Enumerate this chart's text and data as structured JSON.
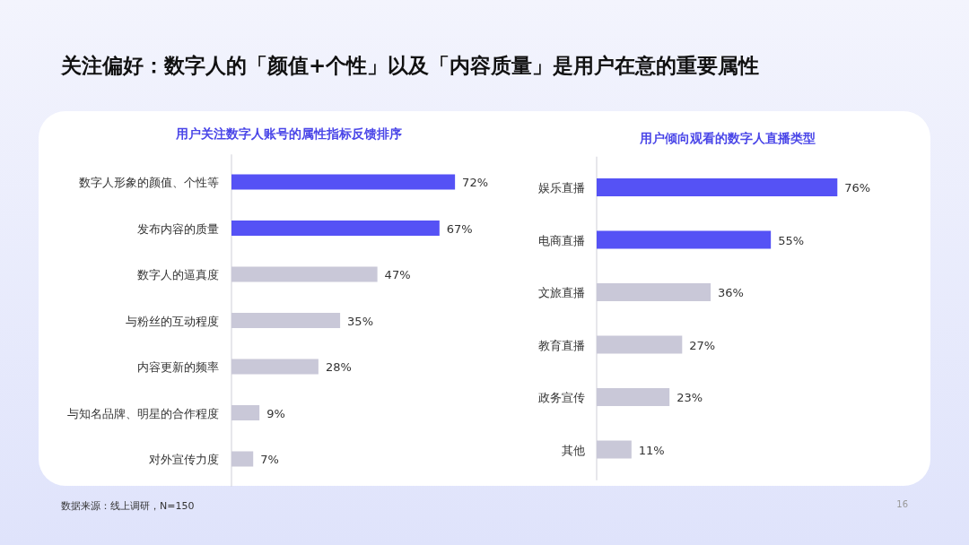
{
  "chart_data": [
    {
      "type": "bar",
      "orientation": "horizontal",
      "title": "关注偏好：数字人的「颜值+个性」以及「内容质量」是用户在意的重要属性",
      "subtitle": "用户关注数字人账号的属性指标反馈排序",
      "categories": [
        "数字人形象的颜值、个性等",
        "发布内容的质量",
        "数字人的逼真度",
        "与粉丝的互动程度",
        "内容更新的频率",
        "与知名品牌、明星的合作程度",
        "对外宣传力度"
      ],
      "values": [
        72,
        67,
        47,
        35,
        28,
        9,
        7
      ],
      "colors": [
        "#5552f5",
        "#5552f5",
        "#c9c8d8",
        "#c9c8d8",
        "#c9c8d8",
        "#c9c8d8",
        "#c9c8d8"
      ],
      "value_labels": [
        "72%",
        "67%",
        "47%",
        "35%",
        "28%",
        "9%",
        "7%"
      ],
      "annotations": [
        "数据来源：线上调研，N=150",
        "16"
      ]
    },
    {
      "type": "bar",
      "orientation": "horizontal",
      "subtitle": "用户倾向观看的数字人直播类型",
      "categories": [
        "娱乐直播",
        "电商直播",
        "文旅直播",
        "教育直播",
        "政务宣传",
        "其他"
      ],
      "values": [
        76,
        55,
        36,
        27,
        23,
        11
      ],
      "colors": [
        "#5552f5",
        "#5552f5",
        "#c9c8d8",
        "#c9c8d8",
        "#c9c8d8",
        "#c9c8d8"
      ],
      "value_labels": [
        "76%",
        "55%",
        "36%",
        "27%",
        "23%",
        "11%"
      ]
    }
  ]
}
